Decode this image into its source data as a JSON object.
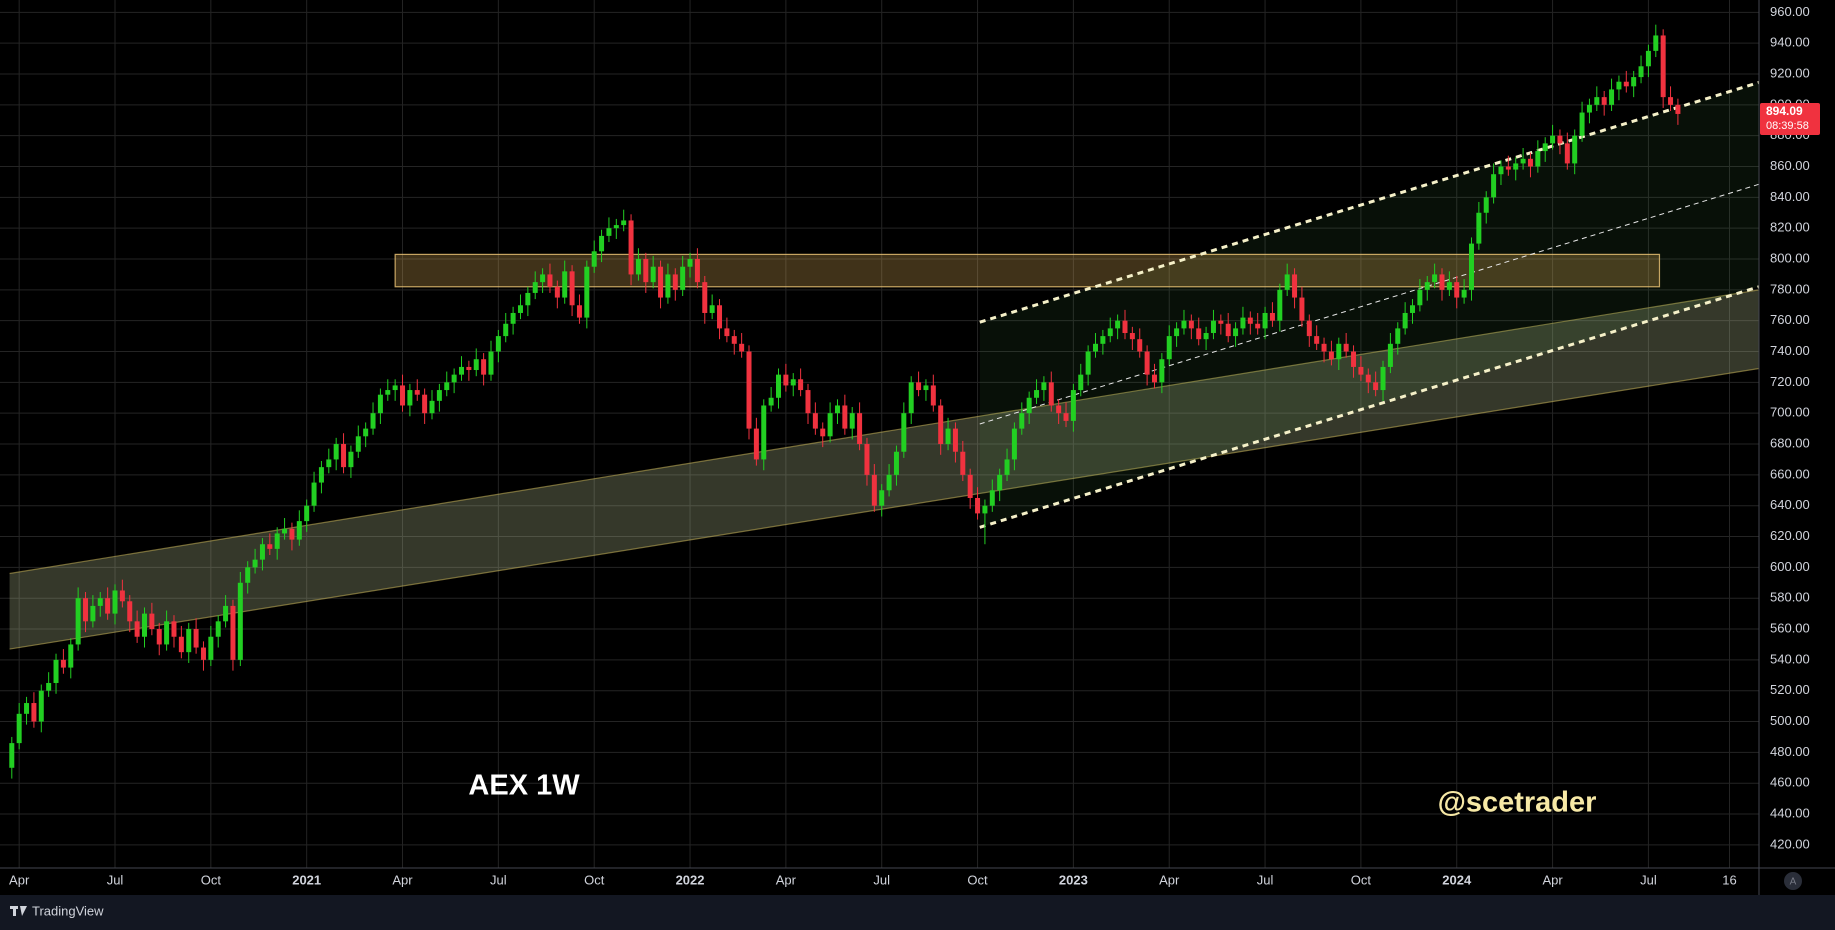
{
  "chart_data": {
    "type": "candlestick",
    "title": "AEX 1W",
    "watermark": "@scetrader",
    "up_color": "#22cf22",
    "down_color": "#f0323f",
    "candles": [
      [
        470,
        490,
        463,
        486
      ],
      [
        486,
        512,
        482,
        505
      ],
      [
        505,
        516,
        498,
        512
      ],
      [
        512,
        519,
        496,
        500
      ],
      [
        500,
        524,
        493,
        520
      ],
      [
        520,
        532,
        516,
        525
      ],
      [
        525,
        544,
        518,
        540
      ],
      [
        540,
        547,
        531,
        535
      ],
      [
        535,
        554,
        528,
        550
      ],
      [
        550,
        587,
        546,
        580
      ],
      [
        580,
        584,
        558,
        565
      ],
      [
        565,
        582,
        561,
        575
      ],
      [
        575,
        584,
        568,
        580
      ],
      [
        580,
        587,
        566,
        570
      ],
      [
        570,
        589,
        563,
        585
      ],
      [
        585,
        592,
        574,
        578
      ],
      [
        578,
        582,
        558,
        565
      ],
      [
        565,
        572,
        551,
        555
      ],
      [
        555,
        574,
        548,
        570
      ],
      [
        570,
        577,
        556,
        560
      ],
      [
        560,
        564,
        543,
        550
      ],
      [
        550,
        572,
        546,
        565
      ],
      [
        565,
        569,
        548,
        555
      ],
      [
        555,
        562,
        541,
        545
      ],
      [
        545,
        564,
        538,
        560
      ],
      [
        560,
        567,
        544,
        548
      ],
      [
        548,
        552,
        533,
        540
      ],
      [
        540,
        562,
        536,
        555
      ],
      [
        555,
        569,
        548,
        565
      ],
      [
        565,
        582,
        561,
        575
      ],
      [
        575,
        579,
        533,
        540
      ],
      [
        540,
        597,
        536,
        590
      ],
      [
        590,
        604,
        583,
        600
      ],
      [
        600,
        612,
        596,
        605
      ],
      [
        605,
        619,
        598,
        615
      ],
      [
        615,
        622,
        608,
        612
      ],
      [
        612,
        626,
        605,
        622
      ],
      [
        622,
        632,
        618,
        625
      ],
      [
        625,
        629,
        611,
        618
      ],
      [
        618,
        637,
        614,
        630
      ],
      [
        630,
        644,
        623,
        640
      ],
      [
        640,
        662,
        636,
        655
      ],
      [
        655,
        669,
        648,
        665
      ],
      [
        665,
        677,
        661,
        670
      ],
      [
        670,
        684,
        663,
        680
      ],
      [
        680,
        687,
        661,
        665
      ],
      [
        665,
        679,
        658,
        675
      ],
      [
        675,
        692,
        671,
        685
      ],
      [
        685,
        694,
        678,
        690
      ],
      [
        690,
        707,
        686,
        700
      ],
      [
        700,
        716,
        693,
        712
      ],
      [
        712,
        722,
        708,
        715
      ],
      [
        715,
        722,
        708,
        718
      ],
      [
        718,
        725,
        701,
        705
      ],
      [
        705,
        719,
        698,
        715
      ],
      [
        715,
        722,
        708,
        712
      ],
      [
        712,
        716,
        693,
        700
      ],
      [
        700,
        715,
        696,
        708
      ],
      [
        708,
        719,
        701,
        715
      ],
      [
        715,
        727,
        711,
        720
      ],
      [
        720,
        729,
        713,
        725
      ],
      [
        725,
        737,
        721,
        730
      ],
      [
        730,
        734,
        721,
        728
      ],
      [
        728,
        742,
        724,
        735
      ],
      [
        735,
        739,
        718,
        725
      ],
      [
        725,
        747,
        721,
        740
      ],
      [
        740,
        754,
        733,
        750
      ],
      [
        750,
        765,
        746,
        758
      ],
      [
        758,
        769,
        751,
        765
      ],
      [
        765,
        777,
        761,
        770
      ],
      [
        770,
        782,
        763,
        778
      ],
      [
        778,
        792,
        774,
        785
      ],
      [
        785,
        794,
        778,
        790
      ],
      [
        790,
        797,
        778,
        782
      ],
      [
        782,
        786,
        768,
        775
      ],
      [
        775,
        799,
        771,
        792
      ],
      [
        792,
        796,
        763,
        770
      ],
      [
        770,
        777,
        758,
        762
      ],
      [
        762,
        799,
        755,
        795
      ],
      [
        795,
        812,
        791,
        805
      ],
      [
        805,
        819,
        798,
        815
      ],
      [
        815,
        827,
        811,
        820
      ],
      [
        820,
        826,
        813,
        822
      ],
      [
        822,
        832,
        818,
        825
      ],
      [
        825,
        829,
        783,
        790
      ],
      [
        790,
        807,
        786,
        800
      ],
      [
        800,
        804,
        778,
        785
      ],
      [
        785,
        802,
        781,
        795
      ],
      [
        795,
        799,
        768,
        775
      ],
      [
        775,
        797,
        771,
        790
      ],
      [
        790,
        794,
        773,
        780
      ],
      [
        780,
        802,
        776,
        795
      ],
      [
        795,
        804,
        788,
        800
      ],
      [
        800,
        807,
        781,
        785
      ],
      [
        785,
        789,
        758,
        765
      ],
      [
        765,
        777,
        761,
        770
      ],
      [
        770,
        774,
        748,
        755
      ],
      [
        755,
        762,
        746,
        750
      ],
      [
        750,
        754,
        738,
        745
      ],
      [
        745,
        752,
        736,
        740
      ],
      [
        740,
        744,
        683,
        690
      ],
      [
        690,
        697,
        666,
        670
      ],
      [
        670,
        709,
        663,
        705
      ],
      [
        705,
        717,
        701,
        710
      ],
      [
        710,
        729,
        703,
        725
      ],
      [
        725,
        732,
        714,
        718
      ],
      [
        718,
        726,
        711,
        722
      ],
      [
        722,
        729,
        711,
        715
      ],
      [
        715,
        719,
        693,
        700
      ],
      [
        700,
        707,
        686,
        690
      ],
      [
        690,
        694,
        678,
        685
      ],
      [
        685,
        707,
        681,
        700
      ],
      [
        700,
        709,
        693,
        705
      ],
      [
        705,
        712,
        686,
        690
      ],
      [
        690,
        704,
        683,
        700
      ],
      [
        700,
        707,
        676,
        680
      ],
      [
        680,
        684,
        653,
        660
      ],
      [
        660,
        667,
        636,
        640
      ],
      [
        640,
        654,
        633,
        650
      ],
      [
        650,
        667,
        646,
        660
      ],
      [
        660,
        679,
        653,
        675
      ],
      [
        675,
        707,
        671,
        700
      ],
      [
        700,
        724,
        693,
        720
      ],
      [
        720,
        727,
        711,
        715
      ],
      [
        715,
        722,
        708,
        718
      ],
      [
        718,
        725,
        701,
        705
      ],
      [
        705,
        709,
        673,
        680
      ],
      [
        680,
        697,
        676,
        690
      ],
      [
        690,
        694,
        668,
        675
      ],
      [
        675,
        682,
        656,
        660
      ],
      [
        660,
        664,
        638,
        645
      ],
      [
        645,
        652,
        631,
        635
      ],
      [
        635,
        644,
        615,
        640
      ],
      [
        640,
        657,
        636,
        650
      ],
      [
        650,
        664,
        643,
        660
      ],
      [
        660,
        677,
        656,
        670
      ],
      [
        670,
        694,
        663,
        690
      ],
      [
        690,
        707,
        686,
        700
      ],
      [
        700,
        714,
        693,
        710
      ],
      [
        710,
        722,
        706,
        715
      ],
      [
        715,
        724,
        708,
        720
      ],
      [
        720,
        727,
        701,
        705
      ],
      [
        705,
        709,
        693,
        700
      ],
      [
        700,
        707,
        691,
        695
      ],
      [
        695,
        719,
        688,
        715
      ],
      [
        715,
        732,
        711,
        725
      ],
      [
        725,
        744,
        718,
        740
      ],
      [
        740,
        752,
        736,
        745
      ],
      [
        745,
        754,
        738,
        750
      ],
      [
        750,
        762,
        746,
        755
      ],
      [
        755,
        764,
        748,
        760
      ],
      [
        760,
        767,
        748,
        752
      ],
      [
        752,
        756,
        741,
        748
      ],
      [
        748,
        755,
        736,
        740
      ],
      [
        740,
        744,
        718,
        725
      ],
      [
        725,
        732,
        716,
        720
      ],
      [
        720,
        739,
        713,
        735
      ],
      [
        735,
        757,
        731,
        750
      ],
      [
        750,
        759,
        743,
        755
      ],
      [
        755,
        767,
        751,
        760
      ],
      [
        760,
        764,
        748,
        755
      ],
      [
        755,
        762,
        744,
        748
      ],
      [
        748,
        756,
        741,
        752
      ],
      [
        752,
        767,
        748,
        760
      ],
      [
        760,
        764,
        751,
        758
      ],
      [
        758,
        765,
        746,
        750
      ],
      [
        750,
        759,
        743,
        755
      ],
      [
        755,
        769,
        751,
        762
      ],
      [
        762,
        766,
        751,
        758
      ],
      [
        758,
        765,
        751,
        755
      ],
      [
        755,
        769,
        748,
        765
      ],
      [
        765,
        772,
        756,
        760
      ],
      [
        760,
        784,
        753,
        780
      ],
      [
        780,
        797,
        776,
        790
      ],
      [
        790,
        794,
        768,
        775
      ],
      [
        775,
        782,
        756,
        760
      ],
      [
        760,
        764,
        743,
        750
      ],
      [
        750,
        757,
        741,
        745
      ],
      [
        745,
        749,
        733,
        740
      ],
      [
        740,
        747,
        731,
        735
      ],
      [
        735,
        749,
        728,
        745
      ],
      [
        745,
        752,
        736,
        740
      ],
      [
        740,
        744,
        723,
        730
      ],
      [
        730,
        737,
        721,
        725
      ],
      [
        725,
        729,
        713,
        720
      ],
      [
        720,
        727,
        711,
        715
      ],
      [
        715,
        734,
        708,
        730
      ],
      [
        730,
        752,
        726,
        745
      ],
      [
        745,
        759,
        738,
        755
      ],
      [
        755,
        772,
        751,
        765
      ],
      [
        765,
        774,
        758,
        770
      ],
      [
        770,
        787,
        766,
        780
      ],
      [
        780,
        789,
        773,
        785
      ],
      [
        785,
        797,
        781,
        790
      ],
      [
        790,
        794,
        773,
        780
      ],
      [
        780,
        792,
        776,
        785
      ],
      [
        785,
        789,
        768,
        775
      ],
      [
        775,
        787,
        771,
        780
      ],
      [
        780,
        814,
        773,
        810
      ],
      [
        810,
        837,
        806,
        830
      ],
      [
        830,
        844,
        823,
        840
      ],
      [
        840,
        862,
        836,
        855
      ],
      [
        855,
        864,
        848,
        860
      ],
      [
        860,
        867,
        854,
        858
      ],
      [
        858,
        866,
        851,
        862
      ],
      [
        862,
        872,
        858,
        865
      ],
      [
        865,
        869,
        853,
        860
      ],
      [
        860,
        877,
        856,
        870
      ],
      [
        870,
        879,
        863,
        875
      ],
      [
        875,
        887,
        871,
        880
      ],
      [
        880,
        884,
        868,
        875
      ],
      [
        875,
        882,
        858,
        862
      ],
      [
        862,
        884,
        855,
        880
      ],
      [
        880,
        902,
        876,
        895
      ],
      [
        895,
        904,
        888,
        900
      ],
      [
        900,
        912,
        896,
        905
      ],
      [
        905,
        909,
        893,
        900
      ],
      [
        900,
        917,
        896,
        910
      ],
      [
        910,
        919,
        903,
        915
      ],
      [
        915,
        922,
        908,
        912
      ],
      [
        912,
        922,
        905,
        918
      ],
      [
        918,
        932,
        914,
        925
      ],
      [
        925,
        939,
        918,
        935
      ],
      [
        935,
        952,
        931,
        945
      ],
      [
        945,
        949,
        898,
        905
      ],
      [
        905,
        912,
        896,
        900
      ],
      [
        900,
        904,
        887,
        894.09
      ]
    ],
    "last_price": 894.09,
    "countdown": "08:39:58",
    "xlim": [
      -1.6,
      237
    ],
    "xticks": [
      {
        "value": 1,
        "label": "Apr"
      },
      {
        "value": 14,
        "label": "Jul"
      },
      {
        "value": 27,
        "label": "Oct"
      },
      {
        "value": 40,
        "label": "2021"
      },
      {
        "value": 53,
        "label": "Apr"
      },
      {
        "value": 66,
        "label": "Jul"
      },
      {
        "value": 79,
        "label": "Oct"
      },
      {
        "value": 92,
        "label": "2022"
      },
      {
        "value": 105,
        "label": "Apr"
      },
      {
        "value": 118,
        "label": "Jul"
      },
      {
        "value": 131,
        "label": "Oct"
      },
      {
        "value": 144,
        "label": "2023"
      },
      {
        "value": 157,
        "label": "Apr"
      },
      {
        "value": 170,
        "label": "Jul"
      },
      {
        "value": 183,
        "label": "Oct"
      },
      {
        "value": 196,
        "label": "2024"
      },
      {
        "value": 209,
        "label": "Apr"
      },
      {
        "value": 222,
        "label": "Jul"
      },
      {
        "value": 233,
        "label": "16"
      }
    ],
    "ylim": [
      405,
      968
    ],
    "yticks": [
      {
        "value": 420,
        "label": "420.00"
      },
      {
        "value": 440,
        "label": "440.00"
      },
      {
        "value": 460,
        "label": "460.00"
      },
      {
        "value": 480,
        "label": "480.00"
      },
      {
        "value": 500,
        "label": "500.00"
      },
      {
        "value": 520,
        "label": "520.00"
      },
      {
        "value": 540,
        "label": "540.00"
      },
      {
        "value": 560,
        "label": "560.00"
      },
      {
        "value": 580,
        "label": "580.00"
      },
      {
        "value": 600,
        "label": "600.00"
      },
      {
        "value": 620,
        "label": "620.00"
      },
      {
        "value": 640,
        "label": "640.00"
      },
      {
        "value": 660,
        "label": "660.00"
      },
      {
        "value": 680,
        "label": "680.00"
      },
      {
        "value": 700,
        "label": "700.00"
      },
      {
        "value": 720,
        "label": "720.00"
      },
      {
        "value": 740,
        "label": "740.00"
      },
      {
        "value": 760,
        "label": "760.00"
      },
      {
        "value": 780,
        "label": "780.00"
      },
      {
        "value": 800,
        "label": "800.00"
      },
      {
        "value": 820,
        "label": "820.00"
      },
      {
        "value": 840,
        "label": "840.00"
      },
      {
        "value": 860,
        "label": "860.00"
      },
      {
        "value": 880,
        "label": "880.00"
      },
      {
        "value": 900,
        "label": "900.00"
      },
      {
        "value": 920,
        "label": "920.00"
      },
      {
        "value": 940,
        "label": "940.00"
      },
      {
        "value": 960,
        "label": "960.00"
      }
    ],
    "grid": true,
    "drawings": {
      "zone": {
        "x": [
          52,
          223.5
        ],
        "y": [
          782,
          803
        ]
      },
      "band_upper": {
        "x": [
          -0.3,
          237
        ],
        "y": [
          596,
          780
        ]
      },
      "band_lower": {
        "x": [
          -0.3,
          237
        ],
        "y": [
          547,
          729
        ]
      },
      "channel_upper": {
        "x": [
          131.3,
          237
        ],
        "y": [
          759,
          914.5
        ]
      },
      "channel_lower": {
        "x": [
          131.3,
          237
        ],
        "y": [
          626,
          782
        ]
      },
      "channel_mid": {
        "x": [
          131.3,
          237
        ],
        "y": [
          693,
          848.5
        ]
      }
    }
  },
  "controls": {
    "auto_scale": "A"
  },
  "footer": {
    "brand": "TradingView"
  }
}
